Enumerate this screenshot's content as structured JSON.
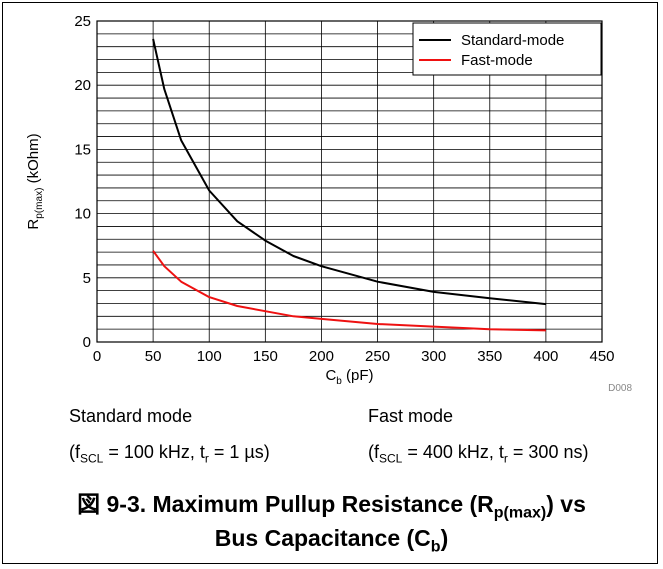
{
  "chart_data": {
    "type": "line",
    "xlabel": "C",
    "xlabel_sub": "b",
    "xlabel_unit": "(pF)",
    "ylabel": "R",
    "ylabel_sub": "p(max)",
    "ylabel_unit": "(kOhm)",
    "xlim": [
      0,
      450
    ],
    "ylim": [
      0,
      25
    ],
    "x_ticks": [
      0,
      50,
      100,
      150,
      200,
      250,
      300,
      350,
      400,
      450
    ],
    "y_ticks": [
      0,
      5,
      10,
      15,
      20,
      25
    ],
    "y_minor_step": 1,
    "grid": true,
    "legend_position": "top-right",
    "code": "D008",
    "series": [
      {
        "name": "Standard-mode",
        "color": "#000000",
        "x": [
          50,
          60,
          75,
          100,
          125,
          150,
          175,
          200,
          250,
          300,
          350,
          400
        ],
        "y": [
          23.6,
          19.7,
          15.7,
          11.8,
          9.4,
          7.9,
          6.7,
          5.9,
          4.7,
          3.9,
          3.4,
          2.95
        ]
      },
      {
        "name": "Fast-mode",
        "color": "#ee1111",
        "x": [
          50,
          60,
          75,
          100,
          125,
          150,
          175,
          200,
          250,
          300,
          350,
          400
        ],
        "y": [
          7.1,
          5.9,
          4.7,
          3.5,
          2.8,
          2.4,
          2.0,
          1.8,
          1.4,
          1.2,
          1.0,
          0.9
        ]
      }
    ]
  },
  "notes": {
    "standard": {
      "title": "Standard mode",
      "open": "(f",
      "f_sub": "SCL",
      "mid": " = 100 kHz, t",
      "t_sub": "r",
      "tail": " = 1 µs)"
    },
    "fast": {
      "title": "Fast mode",
      "open": "(f",
      "f_sub": "SCL",
      "mid": " = 400 kHz, t",
      "t_sub": "r",
      "tail": " = 300 ns)"
    }
  },
  "caption": {
    "line1_pre": "図 9-3. Maximum Pullup Resistance (R",
    "line1_sub": "p(max)",
    "line1_post": ") vs",
    "line2_pre": "Bus Capacitance (C",
    "line2_sub": "b",
    "line2_post": ")"
  }
}
